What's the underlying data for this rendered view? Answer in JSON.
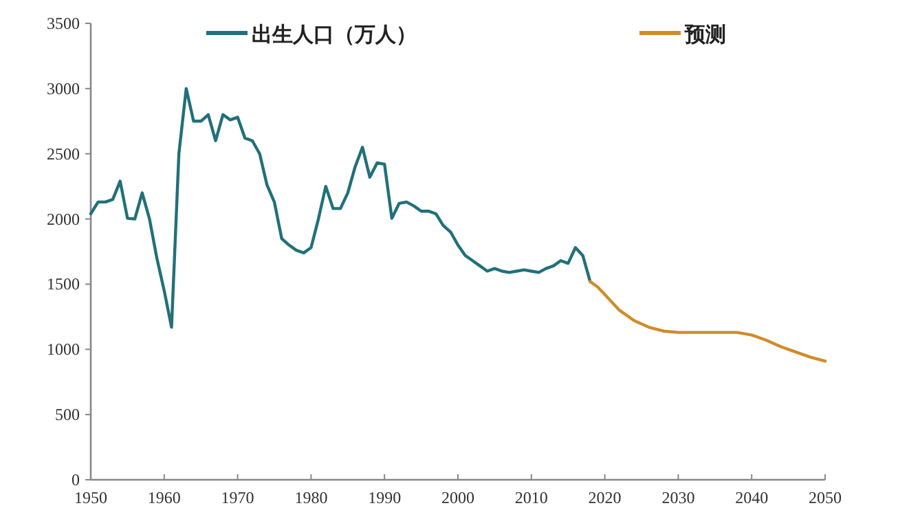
{
  "chart_data": {
    "type": "line",
    "legend": "top",
    "grid": false,
    "marker": "none",
    "line_style": "solid",
    "xlim": [
      1950,
      2050
    ],
    "xticks": [
      1950,
      1960,
      1970,
      1980,
      1990,
      2000,
      2010,
      2020,
      2030,
      2040,
      2050
    ],
    "ylim": [
      0,
      3500
    ],
    "yticks": [
      0,
      500,
      1000,
      1500,
      2000,
      2500,
      3000,
      3500
    ],
    "series": [
      {
        "name": "出生人口（万人）",
        "color": "#21707a",
        "x": [
          1950,
          1951,
          1952,
          1953,
          1954,
          1955,
          1956,
          1957,
          1958,
          1959,
          1960,
          1961,
          1962,
          1963,
          1964,
          1965,
          1966,
          1967,
          1968,
          1969,
          1970,
          1971,
          1972,
          1973,
          1974,
          1975,
          1976,
          1977,
          1978,
          1979,
          1980,
          1981,
          1982,
          1983,
          1984,
          1985,
          1986,
          1987,
          1988,
          1989,
          1990,
          1991,
          1992,
          1993,
          1994,
          1995,
          1996,
          1997,
          1998,
          1999,
          2000,
          2001,
          2002,
          2003,
          2004,
          2005,
          2006,
          2007,
          2008,
          2009,
          2010,
          2011,
          2012,
          2013,
          2014,
          2015,
          2016,
          2017,
          2018
        ],
        "values": [
          2040,
          2130,
          2130,
          2150,
          2290,
          2005,
          2000,
          2200,
          2000,
          1700,
          1450,
          1170,
          2500,
          3000,
          2750,
          2750,
          2800,
          2600,
          2800,
          2760,
          2780,
          2620,
          2600,
          2500,
          2260,
          2130,
          1850,
          1800,
          1760,
          1740,
          1780,
          2000,
          2250,
          2080,
          2080,
          2200,
          2400,
          2550,
          2320,
          2430,
          2420,
          2005,
          2120,
          2130,
          2100,
          2060,
          2060,
          2040,
          1950,
          1900,
          1800,
          1720,
          1680,
          1640,
          1600,
          1620,
          1600,
          1590,
          1600,
          1610,
          1600,
          1590,
          1620,
          1640,
          1680,
          1660,
          1780,
          1720,
          1520
        ]
      },
      {
        "name": "预测",
        "color": "#d08c2a",
        "x": [
          2018,
          2019,
          2020,
          2022,
          2024,
          2026,
          2028,
          2030,
          2035,
          2038,
          2040,
          2042,
          2044,
          2046,
          2048,
          2050
        ],
        "values": [
          1520,
          1480,
          1420,
          1300,
          1220,
          1170,
          1140,
          1130,
          1130,
          1130,
          1110,
          1070,
          1020,
          980,
          940,
          910
        ]
      }
    ]
  }
}
